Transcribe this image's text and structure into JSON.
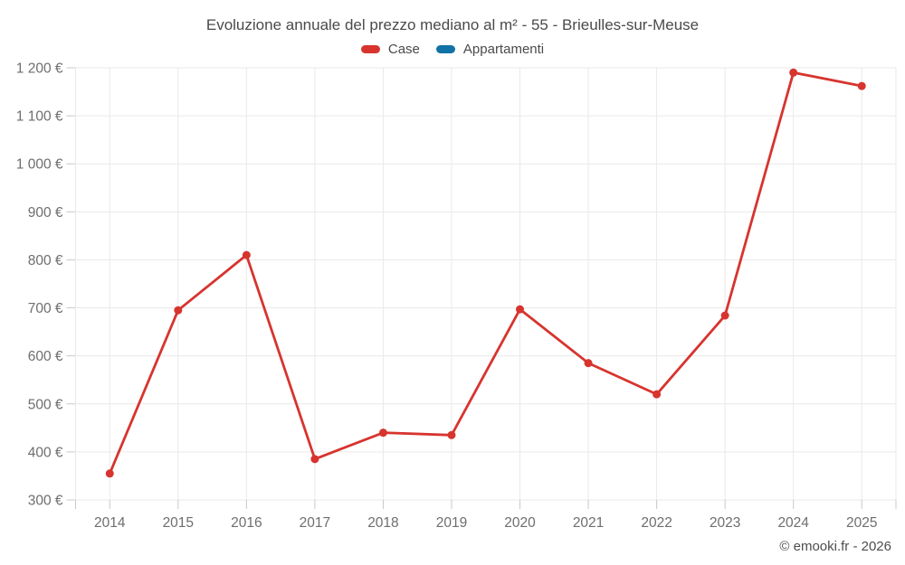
{
  "footer": {
    "credit": "© emooki.fr - 2026"
  },
  "chart_data": {
    "type": "line",
    "title": "Evoluzione annuale del prezzo mediano al m² - 55 - Brieulles-sur-Meuse",
    "categories": [
      "2014",
      "2015",
      "2016",
      "2017",
      "2018",
      "2019",
      "2020",
      "2021",
      "2022",
      "2023",
      "2024",
      "2025"
    ],
    "series": [
      {
        "name": "Case",
        "color": "#d7342e",
        "values": [
          355,
          695,
          810,
          385,
          440,
          435,
          697,
          585,
          520,
          684,
          1190,
          1162
        ]
      },
      {
        "name": "Appartamenti",
        "color": "#1172a5",
        "values": []
      }
    ],
    "xlabel": "",
    "ylabel": "",
    "ylim": [
      300,
      1200
    ],
    "yticks": [
      300,
      400,
      500,
      600,
      700,
      800,
      900,
      1000,
      1100,
      1200
    ],
    "ytick_labels": [
      "300 €",
      "400 €",
      "500 €",
      "600 €",
      "700 €",
      "800 €",
      "900 €",
      "1 000 €",
      "1 100 €",
      "1 200 €"
    ],
    "grid": true,
    "legend_position": "top",
    "colors": {
      "gridline": "#e9e9e9",
      "tick": "#c9c9c9",
      "axis_label": "#6e6e6e",
      "title": "#4a4a4a"
    }
  }
}
